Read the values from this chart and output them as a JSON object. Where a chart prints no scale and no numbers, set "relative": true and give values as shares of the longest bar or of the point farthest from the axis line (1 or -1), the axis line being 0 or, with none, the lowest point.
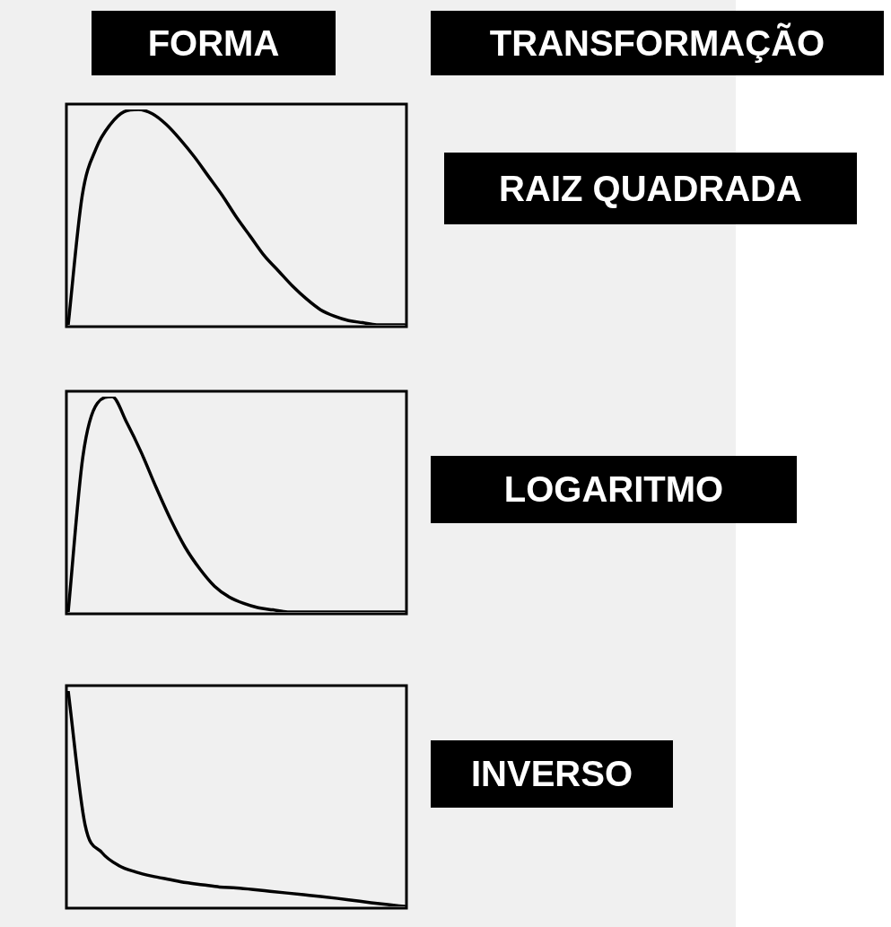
{
  "chart_data": [
    {
      "type": "line",
      "annotations": [
        "FORMA",
        "TRANSFORMAÇÃO",
        "RAIZ QUADRADA"
      ],
      "relative": true,
      "color": "#000000",
      "marker": "none",
      "line_style": "solid",
      "categories": [
        null,
        null,
        null,
        null,
        null,
        null,
        null,
        null,
        null,
        null,
        null,
        null,
        null,
        null,
        null,
        null,
        null,
        null,
        null,
        null,
        null,
        null,
        null,
        null,
        null
      ],
      "values": [
        0,
        0.6,
        0.82,
        0.93,
        0.99,
        1,
        0.98,
        0.93,
        0.86,
        0.78,
        0.69,
        0.6,
        0.5,
        0.41,
        0.32,
        0.25,
        0.18,
        0.12,
        0.07,
        0.04,
        0.02,
        0.01,
        0,
        0,
        0
      ]
    },
    {
      "type": "line",
      "annotations": [
        "LOGARITMO"
      ],
      "relative": true,
      "color": "#000000",
      "marker": "none",
      "line_style": "solid",
      "categories": [
        null,
        null,
        null,
        null,
        null,
        null,
        null,
        null,
        null,
        null,
        null,
        null,
        null,
        null,
        null,
        null,
        null,
        null,
        null,
        null,
        null,
        null,
        null,
        null
      ],
      "values": [
        0,
        0.72,
        0.97,
        1,
        0.88,
        0.74,
        0.58,
        0.43,
        0.3,
        0.2,
        0.12,
        0.07,
        0.04,
        0.02,
        0.01,
        0,
        0,
        0,
        0,
        0,
        0,
        0,
        0,
        0
      ]
    },
    {
      "type": "line",
      "annotations": [
        "INVERSO"
      ],
      "relative": true,
      "color": "#000000",
      "marker": "none",
      "line_style": "solid",
      "categories": [
        null,
        null,
        null,
        null,
        null,
        null,
        null,
        null,
        null,
        null,
        null,
        null,
        null,
        null,
        null,
        null,
        null,
        null,
        null,
        null,
        null
      ],
      "values": [
        1,
        0.38,
        0.25,
        0.19,
        0.16,
        0.14,
        0.125,
        0.11,
        0.1,
        0.09,
        0.085,
        0.078,
        0.07,
        0.062,
        0.054,
        0.046,
        0.037,
        0.027,
        0.017,
        0.008,
        0
      ]
    }
  ]
}
